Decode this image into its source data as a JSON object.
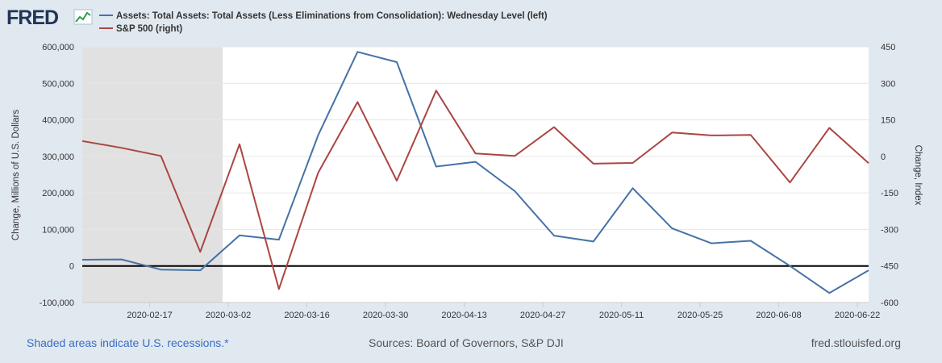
{
  "logo": {
    "text": "FRED"
  },
  "legend": [
    {
      "label": "Assets: Total Assets: Total Assets (Less Eliminations from Consolidation): Wednesday Level (left)",
      "color": "#4572a7"
    },
    {
      "label": "S&P 500 (right)",
      "color": "#aa4643"
    }
  ],
  "footer": {
    "recession_note": "Shaded areas indicate U.S. recessions.*",
    "sources": "Sources: Board of Governors, S&P DJI",
    "site": "fred.stlouisfed.org"
  },
  "colors": {
    "background": "#e1e9f0",
    "plot_background": "#ffffff",
    "recession_shade": "#e1e1e1",
    "zero_line": "#000000",
    "link": "#3a6cc6"
  },
  "chart_data": {
    "type": "line",
    "x_range": [
      "2020-02-05",
      "2020-06-24"
    ],
    "x_ticks": [
      "2020-02-17",
      "2020-03-02",
      "2020-03-16",
      "2020-03-30",
      "2020-04-13",
      "2020-04-27",
      "2020-05-11",
      "2020-05-25",
      "2020-06-08",
      "2020-06-22"
    ],
    "y_left": {
      "label": "Change, Millions of U.S. Dollars",
      "range": [
        -100000,
        600000
      ],
      "ticks": [
        600000,
        500000,
        400000,
        300000,
        200000,
        100000,
        0,
        -100000
      ],
      "tick_labels": [
        "600,000",
        "500,000",
        "400,000",
        "300,000",
        "200,000",
        "100,000",
        "0",
        "-100,000"
      ]
    },
    "y_right": {
      "label": "Change, Index",
      "range": [
        -600,
        450
      ],
      "ticks": [
        450,
        300,
        150,
        0,
        -150,
        -300,
        -450,
        -600
      ],
      "tick_labels": [
        "450",
        "300",
        "150",
        "0",
        "-150",
        "-300",
        "-450",
        "-600"
      ]
    },
    "recession": {
      "start": "2020-02-05",
      "end": "2020-03-01"
    },
    "series": [
      {
        "name": "Assets: Total Assets: Total Assets (Less Eliminations from Consolidation): Wednesday Level (left)",
        "axis": "left",
        "color": "#4572a7",
        "x": [
          "2020-02-05",
          "2020-02-12",
          "2020-02-19",
          "2020-02-26",
          "2020-03-04",
          "2020-03-11",
          "2020-03-18",
          "2020-03-25",
          "2020-04-01",
          "2020-04-08",
          "2020-04-15",
          "2020-04-22",
          "2020-04-29",
          "2020-05-06",
          "2020-05-13",
          "2020-05-20",
          "2020-05-27",
          "2020-06-03",
          "2020-06-10",
          "2020-06-17",
          "2020-06-24"
        ],
        "values": [
          17000,
          18000,
          -10000,
          -12000,
          84000,
          72000,
          358000,
          586000,
          558000,
          272000,
          285000,
          205000,
          83000,
          67000,
          213000,
          103000,
          62000,
          69000,
          0,
          -74000,
          -12000
        ]
      },
      {
        "name": "S&P 500 (right)",
        "axis": "right",
        "color": "#aa4643",
        "x": [
          "2020-02-05",
          "2020-02-12",
          "2020-02-19",
          "2020-02-26",
          "2020-03-04",
          "2020-03-11",
          "2020-03-18",
          "2020-03-25",
          "2020-04-01",
          "2020-04-08",
          "2020-04-15",
          "2020-04-22",
          "2020-04-29",
          "2020-05-06",
          "2020-05-13",
          "2020-05-20",
          "2020-05-27",
          "2020-06-03",
          "2020-06-10",
          "2020-06-17",
          "2020-06-24"
        ],
        "values": [
          63,
          35,
          2,
          -392,
          50,
          -545,
          -67,
          223,
          -100,
          270,
          12,
          2,
          120,
          -30,
          -27,
          98,
          86,
          88,
          -107,
          117,
          -28
        ]
      }
    ]
  }
}
